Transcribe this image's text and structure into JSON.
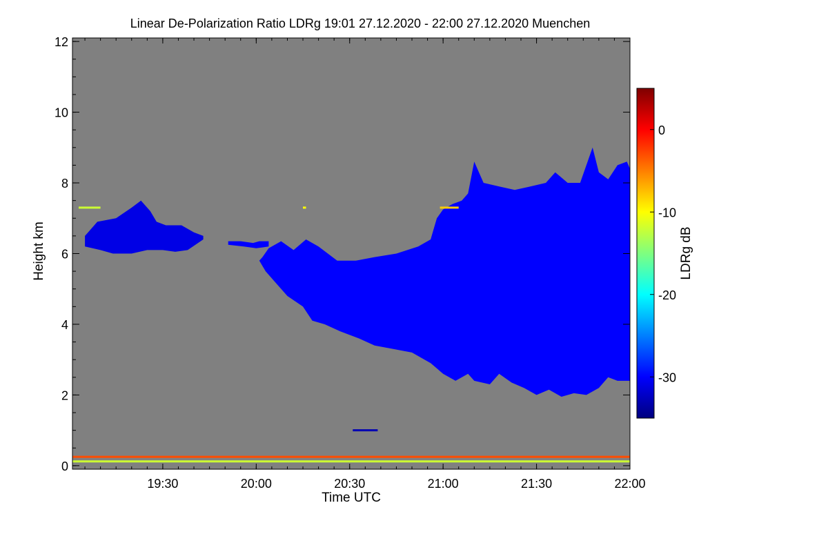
{
  "chart_data": {
    "type": "heatmap",
    "title": "Linear De-Polarization Ratio LDRg   19:01 27.12.2020 - 22:00 27.12.2020 Muenchen",
    "xlabel": "Time UTC",
    "ylabel": "Height km",
    "x_range_minutes_utc": [
      1141,
      1320
    ],
    "x_ticks": [
      {
        "minute": 1170,
        "label": "19:30"
      },
      {
        "minute": 1200,
        "label": "20:00"
      },
      {
        "minute": 1230,
        "label": "20:30"
      },
      {
        "minute": 1260,
        "label": "21:00"
      },
      {
        "minute": 1290,
        "label": "21:30"
      },
      {
        "minute": 1320,
        "label": "22:00"
      }
    ],
    "ylim_km": [
      -0.1,
      12.1
    ],
    "y_ticks": [
      {
        "value": 0,
        "label": "0"
      },
      {
        "value": 2,
        "label": "2"
      },
      {
        "value": 4,
        "label": "4"
      },
      {
        "value": 6,
        "label": "6"
      },
      {
        "value": 8,
        "label": "8"
      },
      {
        "value": 10,
        "label": "10"
      },
      {
        "value": 12,
        "label": "12"
      }
    ],
    "colorbar": {
      "label": "LDRg dB",
      "range_db": [
        -35,
        5
      ],
      "ticks": [
        {
          "value": 0,
          "label": "0"
        },
        {
          "value": -10,
          "label": "-10"
        },
        {
          "value": -20,
          "label": "-20"
        },
        {
          "value": -30,
          "label": "-30"
        }
      ],
      "colormap": [
        "#00007f",
        "#0000ff",
        "#007fff",
        "#00ffff",
        "#7fff7f",
        "#ffff00",
        "#ff7f00",
        "#ff0000",
        "#7f0000"
      ]
    },
    "background_color": "#808080",
    "cloud_layers": [
      {
        "name": "early-ice-cloud",
        "ldr_db": -31,
        "top": [
          [
            1145,
            6.5
          ],
          [
            1149,
            6.9
          ],
          [
            1155,
            7.0
          ],
          [
            1160,
            7.3
          ],
          [
            1163,
            7.5
          ],
          [
            1166,
            7.2
          ],
          [
            1168,
            6.9
          ],
          [
            1171,
            6.8
          ],
          [
            1176,
            6.8
          ],
          [
            1180,
            6.6
          ],
          [
            1183,
            6.5
          ]
        ],
        "base": [
          [
            1183,
            6.4
          ],
          [
            1178,
            6.1
          ],
          [
            1174,
            6.05
          ],
          [
            1170,
            6.1
          ],
          [
            1165,
            6.1
          ],
          [
            1160,
            6.0
          ],
          [
            1154,
            6.0
          ],
          [
            1150,
            6.1
          ],
          [
            1145,
            6.2
          ]
        ]
      },
      {
        "name": "small-cloud-fragment",
        "ldr_db": -30,
        "top": [
          [
            1191,
            6.35
          ],
          [
            1195,
            6.35
          ],
          [
            1199,
            6.3
          ],
          [
            1201,
            6.35
          ],
          [
            1204,
            6.35
          ]
        ],
        "base": [
          [
            1204,
            6.2
          ],
          [
            1200,
            6.15
          ],
          [
            1196,
            6.2
          ],
          [
            1191,
            6.25
          ]
        ]
      },
      {
        "name": "main-cloud",
        "ldr_db": -30,
        "top": [
          [
            1202,
            5.9
          ],
          [
            1204,
            6.15
          ],
          [
            1208,
            6.35
          ],
          [
            1212,
            6.1
          ],
          [
            1216,
            6.4
          ],
          [
            1220,
            6.2
          ],
          [
            1226,
            5.8
          ],
          [
            1232,
            5.8
          ],
          [
            1238,
            5.9
          ],
          [
            1245,
            6.0
          ],
          [
            1252,
            6.2
          ],
          [
            1256,
            6.4
          ],
          [
            1258,
            7.0
          ],
          [
            1260,
            7.25
          ],
          [
            1263,
            7.4
          ],
          [
            1266,
            7.5
          ],
          [
            1268,
            7.7
          ],
          [
            1270,
            8.6
          ],
          [
            1273,
            8.0
          ],
          [
            1278,
            7.9
          ],
          [
            1283,
            7.8
          ],
          [
            1288,
            7.9
          ],
          [
            1293,
            8.0
          ],
          [
            1296,
            8.3
          ],
          [
            1300,
            8.0
          ],
          [
            1304,
            8.0
          ],
          [
            1306,
            8.5
          ],
          [
            1308,
            9.0
          ],
          [
            1310,
            8.3
          ],
          [
            1313,
            8.1
          ],
          [
            1316,
            8.5
          ],
          [
            1319,
            8.6
          ],
          [
            1320,
            8.4
          ]
        ],
        "base": [
          [
            1320,
            2.4
          ],
          [
            1316,
            2.4
          ],
          [
            1313,
            2.5
          ],
          [
            1310,
            2.2
          ],
          [
            1306,
            2.0
          ],
          [
            1302,
            2.05
          ],
          [
            1298,
            1.95
          ],
          [
            1294,
            2.15
          ],
          [
            1290,
            2.0
          ],
          [
            1286,
            2.2
          ],
          [
            1282,
            2.35
          ],
          [
            1278,
            2.6
          ],
          [
            1275,
            2.3
          ],
          [
            1270,
            2.4
          ],
          [
            1268,
            2.6
          ],
          [
            1264,
            2.4
          ],
          [
            1260,
            2.6
          ],
          [
            1256,
            2.9
          ],
          [
            1250,
            3.2
          ],
          [
            1244,
            3.3
          ],
          [
            1238,
            3.4
          ],
          [
            1233,
            3.6
          ],
          [
            1227,
            3.8
          ],
          [
            1222,
            4.0
          ],
          [
            1218,
            4.1
          ],
          [
            1215,
            4.5
          ],
          [
            1210,
            4.8
          ],
          [
            1206,
            5.2
          ],
          [
            1203,
            5.5
          ],
          [
            1201,
            5.8
          ]
        ]
      }
    ],
    "features": [
      {
        "name": "surface-layer",
        "height_km": 0.25,
        "ldr_db": -3,
        "from": 1141,
        "to": 1320
      },
      {
        "name": "ground-clutter",
        "height_km": 0.12,
        "ldr_db": -12,
        "from": 1141,
        "to": 1320
      },
      {
        "name": "low-level-band",
        "height_km": 1.0,
        "ldr_db": -33,
        "from": 1231,
        "to": 1239
      },
      {
        "name": "high-cloud-speckle-1",
        "height_km": 7.3,
        "ldr_db": -12,
        "from": 1143,
        "to": 1150
      },
      {
        "name": "high-cloud-speckle-2",
        "height_km": 7.3,
        "ldr_db": -10,
        "from": 1215,
        "to": 1216
      },
      {
        "name": "high-cloud-speckle-3",
        "height_km": 7.3,
        "ldr_db": -8,
        "from": 1259,
        "to": 1265
      }
    ]
  }
}
